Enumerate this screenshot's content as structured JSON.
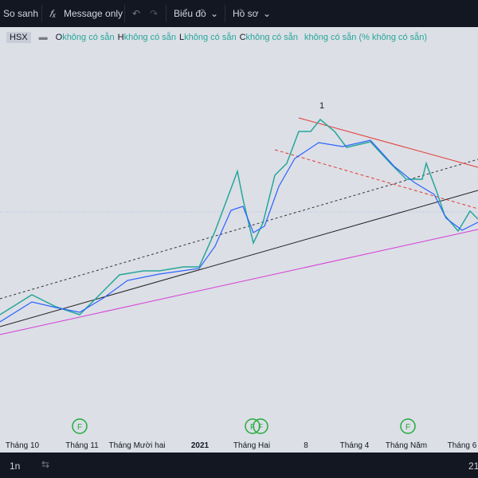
{
  "toolbar": {
    "compare": "So sanh",
    "message": "Message only",
    "chart": "Biểu đồ",
    "profile": "Hồ sơ"
  },
  "legend": {
    "symbol": "HSX",
    "fields": [
      {
        "key": "O",
        "value": "không có sẵn"
      },
      {
        "key": "H",
        "value": "không có sẵn"
      },
      {
        "key": "L",
        "value": "không có sẵn"
      },
      {
        "key": "C",
        "value": "không có sẵn"
      }
    ],
    "change": "không có sẵn (% không có sẵn)"
  },
  "annotations": {
    "wave": "1",
    "events": [
      "F",
      "F",
      "F",
      "F"
    ]
  },
  "time_axis": {
    "labels": [
      "Tháng 10",
      "Tháng 11",
      "Tháng Mười hai",
      "2021",
      "Tháng Hai",
      "8",
      "Tháng 4",
      "Tháng Năm",
      "Tháng 6"
    ]
  },
  "footer": {
    "interval": "1n",
    "time": "21"
  }
}
